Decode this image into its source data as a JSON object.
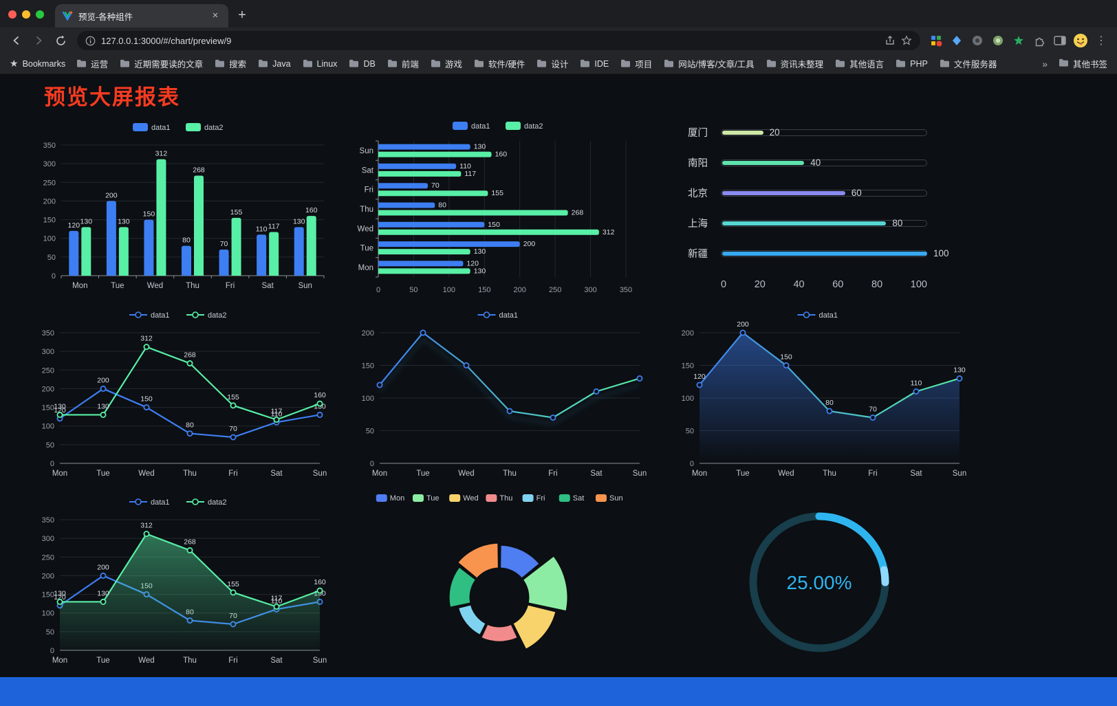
{
  "browser": {
    "traffic_lights": [
      "#ff5f57",
      "#febc2e",
      "#28c840"
    ],
    "tab": {
      "title": "预览-各种组件",
      "close_glyph": "×"
    },
    "new_tab_glyph": "+",
    "url": "127.0.0.1:3000/#/chart/preview/9",
    "bookmarks_bar": {
      "root_label": "Bookmarks",
      "root_icon_glyph": "★",
      "folders": [
        "运营",
        "近期需要读的文章",
        "搜索",
        "Java",
        "Linux",
        "DB",
        "前端",
        "游戏",
        "软件/硬件",
        "设计",
        "IDE",
        "项目",
        "网站/博客/文章/工具",
        "资讯未整理",
        "其他语言",
        "PHP",
        "文件服务器"
      ],
      "overflow_glyph": "»",
      "other_label": "其他书签"
    }
  },
  "page": {
    "title": "预览大屏报表",
    "title_color": "#f53b20",
    "footer_color": "#1e63da"
  },
  "chart_data": [
    {
      "type": "bar",
      "categories": [
        "Mon",
        "Tue",
        "Wed",
        "Thu",
        "Fri",
        "Sat",
        "Sun"
      ],
      "ylim": [
        0,
        350
      ],
      "yticks": [
        0,
        50,
        100,
        150,
        200,
        250,
        300,
        350
      ],
      "series": [
        {
          "name": "data1",
          "color": "#3D7EF2",
          "values": [
            120,
            200,
            150,
            80,
            70,
            110,
            130
          ]
        },
        {
          "name": "data2",
          "color": "#58EFA6",
          "values": [
            130,
            130,
            312,
            268,
            155,
            117,
            160
          ]
        }
      ]
    },
    {
      "type": "hbar",
      "categories": [
        "Mon",
        "Tue",
        "Wed",
        "Thu",
        "Fri",
        "Sat",
        "Sun"
      ],
      "xlim": [
        0,
        350
      ],
      "xticks": [
        0,
        50,
        100,
        150,
        200,
        250,
        300,
        350
      ],
      "series": [
        {
          "name": "data1",
          "color": "#3D7EF2",
          "values": [
            120,
            200,
            150,
            80,
            70,
            110,
            130
          ]
        },
        {
          "name": "data2",
          "color": "#58EFA6",
          "values": [
            130,
            130,
            312,
            268,
            155,
            117,
            160
          ]
        }
      ]
    },
    {
      "type": "progress",
      "max": 100,
      "xticks": [
        0,
        20,
        40,
        60,
        80,
        100
      ],
      "rows": [
        {
          "label": "厦门",
          "value": 20,
          "color": "#cde8a6"
        },
        {
          "label": "南阳",
          "value": 40,
          "color": "#5fe3ae"
        },
        {
          "label": "北京",
          "value": 60,
          "color": "#8a8bf0"
        },
        {
          "label": "上海",
          "value": 80,
          "color": "#55d6d2"
        },
        {
          "label": "新疆",
          "value": 100,
          "color": "#38a9f0"
        }
      ]
    },
    {
      "type": "line",
      "categories": [
        "Mon",
        "Tue",
        "Wed",
        "Thu",
        "Fri",
        "Sat",
        "Sun"
      ],
      "ylim": [
        0,
        350
      ],
      "yticks": [
        0,
        50,
        100,
        150,
        200,
        250,
        300,
        350
      ],
      "labels": true,
      "series": [
        {
          "name": "data1",
          "color": "#3D7EF2",
          "values": [
            120,
            200,
            150,
            80,
            70,
            110,
            130
          ]
        },
        {
          "name": "data2",
          "color": "#58EFA6",
          "values": [
            130,
            130,
            312,
            268,
            155,
            117,
            160
          ]
        }
      ]
    },
    {
      "type": "line",
      "categories": [
        "Mon",
        "Tue",
        "Wed",
        "Thu",
        "Fri",
        "Sat",
        "Sun"
      ],
      "ylim": [
        0,
        200
      ],
      "yticks": [
        0,
        50,
        100,
        150,
        200
      ],
      "labels": false,
      "shadow": true,
      "series": [
        {
          "name": "data1",
          "color": "#3D7EF2",
          "colorEnd": "#58EFA6",
          "values": [
            120,
            200,
            150,
            80,
            70,
            110,
            130
          ]
        }
      ]
    },
    {
      "type": "line",
      "categories": [
        "Mon",
        "Tue",
        "Wed",
        "Thu",
        "Fri",
        "Sat",
        "Sun"
      ],
      "ylim": [
        0,
        200
      ],
      "yticks": [
        0,
        50,
        100,
        150,
        200
      ],
      "labels": true,
      "series": [
        {
          "name": "data1",
          "color": "#3D7EF2",
          "colorEnd": "#58EFA6",
          "area": {
            "from": "rgba(61,126,242,0.5)",
            "to": "rgba(61,126,242,0)"
          },
          "values": [
            120,
            200,
            150,
            80,
            70,
            110,
            130
          ]
        }
      ]
    },
    {
      "type": "line",
      "categories": [
        "Mon",
        "Tue",
        "Wed",
        "Thu",
        "Fri",
        "Sat",
        "Sun"
      ],
      "ylim": [
        0,
        350
      ],
      "yticks": [
        0,
        50,
        100,
        150,
        200,
        250,
        300,
        350
      ],
      "labels": true,
      "series": [
        {
          "name": "data1",
          "color": "#3D7EF2",
          "values": [
            120,
            200,
            150,
            80,
            70,
            110,
            130
          ]
        },
        {
          "name": "data2",
          "color": "#58EFA6",
          "area": {
            "from": "rgba(88,239,166,0.45)",
            "to": "rgba(88,239,166,0.03)"
          },
          "values": [
            130,
            130,
            312,
            268,
            155,
            117,
            160
          ]
        }
      ]
    },
    {
      "type": "rose",
      "categories": [
        "Mon",
        "Tue",
        "Wed",
        "Thu",
        "Fri",
        "Sat",
        "Sun"
      ],
      "values": [
        120,
        200,
        150,
        80,
        70,
        110,
        130
      ],
      "colors": [
        "#4f7df2",
        "#8deca4",
        "#f8d36b",
        "#f28b8b",
        "#7fd3f0",
        "#2fbf83",
        "#f9944e"
      ]
    },
    {
      "type": "gauge",
      "value": 25,
      "label": "25.00%",
      "color": "#2eb5f0",
      "highlight": "#8fd9ff",
      "track": "#173e4a"
    }
  ]
}
